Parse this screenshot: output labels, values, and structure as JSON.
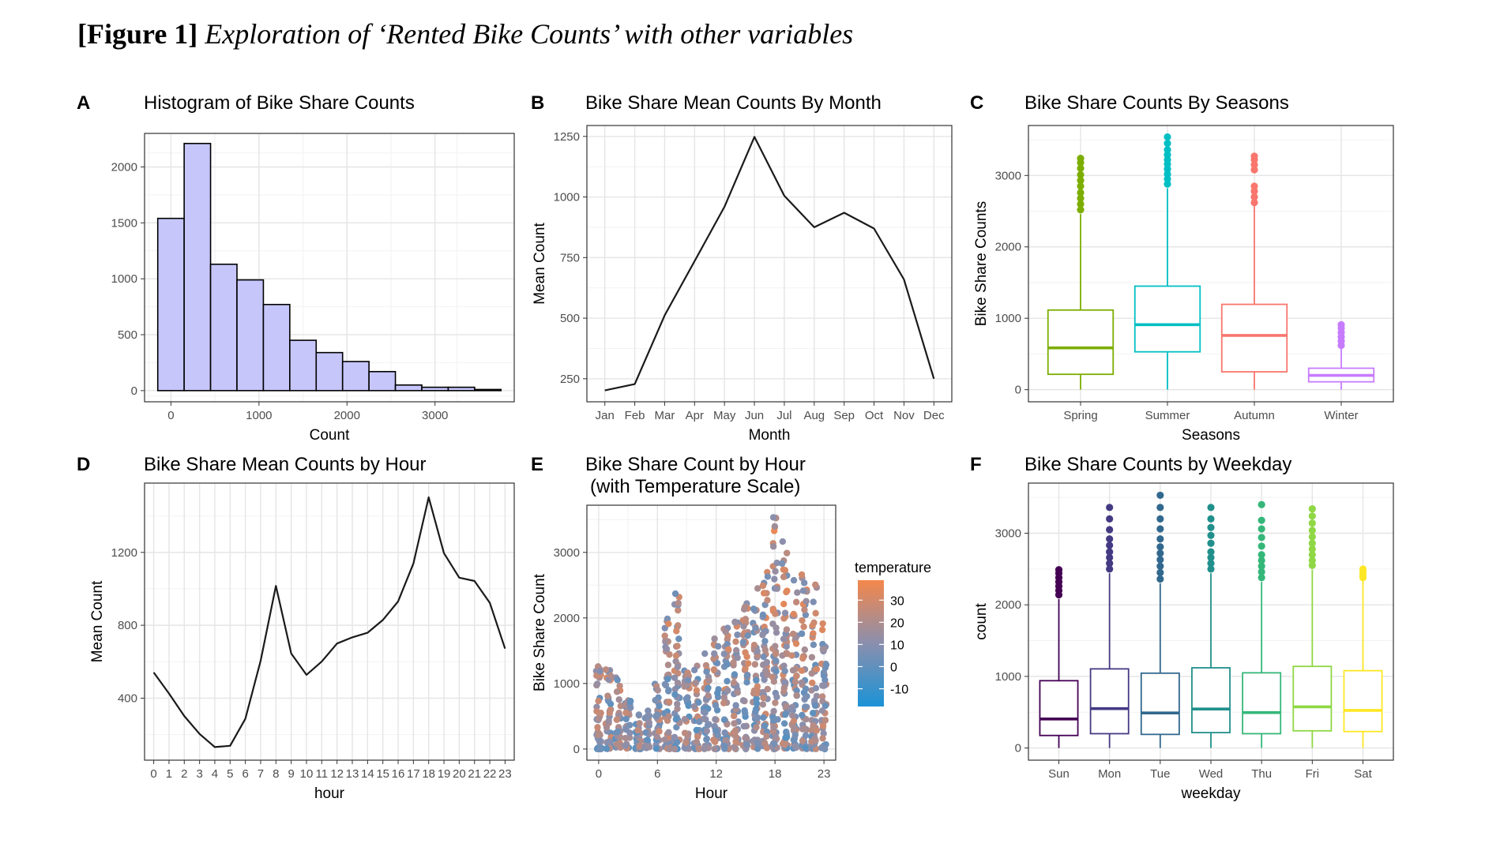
{
  "figure": {
    "label": "[Figure 1]",
    "title": "Exploration of ‘Rented Bike Counts’ with other variables"
  },
  "colors": {
    "histogram_fill": "#c6c6fb",
    "line": "#1a1a1a",
    "season": {
      "Spring": "#7cae00",
      "Summer": "#00bfc4",
      "Autumn": "#f8766d",
      "Winter": "#c77cff"
    },
    "weekday": {
      "Sun": "#440154",
      "Mon": "#443a83",
      "Tue": "#31688e",
      "Wed": "#21908c",
      "Thu": "#35b779",
      "Fri": "#8fd744",
      "Sat": "#fde725"
    },
    "temperature_low": "#1b93d6",
    "temperature_mid": "#8a8fae",
    "temperature_high": "#f4874b"
  },
  "chart_data": [
    {
      "panel": "A",
      "type": "bar",
      "subtype": "histogram",
      "title": "Histogram of Bike Share Counts",
      "xlabel": "Count",
      "ylabel": "",
      "bin_width": 300,
      "bin_starts": [
        -150,
        150,
        450,
        750,
        1050,
        1350,
        1650,
        1950,
        2250,
        2550,
        2850,
        3150,
        3450
      ],
      "values": [
        1540,
        2210,
        1130,
        990,
        770,
        450,
        340,
        260,
        170,
        50,
        30,
        30,
        10
      ],
      "xlim": [
        -300,
        3900
      ],
      "ylim": [
        -100,
        2300
      ],
      "xticks": [
        0,
        1000,
        2000,
        3000
      ],
      "yticks": [
        0,
        500,
        1000,
        1500,
        2000
      ],
      "xtick_labels": [
        "0",
        "1000",
        "2000",
        "3000"
      ],
      "ytick_labels": [
        "0",
        "500",
        "1000",
        "1500",
        "2000"
      ],
      "grid": true
    },
    {
      "panel": "B",
      "type": "line",
      "title": "Bike Share Mean Counts By Month",
      "xlabel": "Month",
      "ylabel": "Mean Count",
      "categories": [
        "Jan",
        "Feb",
        "Mar",
        "Apr",
        "May",
        "Jun",
        "Jul",
        "Aug",
        "Sep",
        "Oct",
        "Nov",
        "Dec"
      ],
      "values": [
        202,
        228,
        512,
        735,
        960,
        1248,
        1005,
        875,
        935,
        870,
        660,
        250
      ],
      "ylim": [
        155,
        1295
      ],
      "yticks": [
        250,
        500,
        750,
        1000,
        1250
      ],
      "ytick_labels": [
        "250",
        "500",
        "750",
        "1000",
        "1250"
      ],
      "grid": true
    },
    {
      "panel": "C",
      "type": "box",
      "title": "Bike Share Counts By Seasons",
      "xlabel": "Seasons",
      "ylabel": "Bike Share Counts",
      "categories": [
        "Spring",
        "Summer",
        "Autumn",
        "Winter"
      ],
      "boxes": [
        {
          "category": "Spring",
          "whisker_low": 0,
          "q1": 215,
          "median": 585,
          "q3": 1115,
          "whisker_high": 2460,
          "outliers": [
            2520,
            2600,
            2680,
            2760,
            2850,
            2930,
            3010,
            3100,
            3180,
            3240
          ]
        },
        {
          "category": "Summer",
          "whisker_low": 0,
          "q1": 530,
          "median": 910,
          "q3": 1450,
          "whisker_high": 2820,
          "outliers": [
            2880,
            2950,
            3020,
            3090,
            3160,
            3220,
            3290,
            3360,
            3450,
            3540
          ]
        },
        {
          "category": "Autumn",
          "whisker_low": 0,
          "q1": 250,
          "median": 760,
          "q3": 1195,
          "whisker_high": 2580,
          "outliers": [
            2620,
            2700,
            2780,
            2850,
            3080,
            3150,
            3220,
            3270
          ]
        },
        {
          "category": "Winter",
          "whisker_low": 0,
          "q1": 110,
          "median": 200,
          "q3": 300,
          "whisker_high": 580,
          "outliers": [
            620,
            680,
            740,
            800,
            860,
            910
          ]
        }
      ],
      "ylim": [
        -170,
        3700
      ],
      "yticks": [
        0,
        1000,
        2000,
        3000
      ],
      "ytick_labels": [
        "0",
        "1000",
        "2000",
        "3000"
      ],
      "grid": true
    },
    {
      "panel": "D",
      "type": "line",
      "title": "Bike Share Mean Counts by Hour",
      "xlabel": "hour",
      "ylabel": "Mean Count",
      "categories": [
        "0",
        "1",
        "2",
        "3",
        "4",
        "5",
        "6",
        "7",
        "8",
        "9",
        "10",
        "11",
        "12",
        "13",
        "14",
        "15",
        "16",
        "17",
        "18",
        "19",
        "20",
        "21",
        "22",
        "23"
      ],
      "values": [
        541,
        426,
        302,
        204,
        132,
        139,
        287,
        606,
        1016,
        645,
        528,
        601,
        700,
        734,
        759,
        829,
        931,
        1139,
        1502,
        1196,
        1061,
        1043,
        923,
        672
      ],
      "ylim": [
        60,
        1580
      ],
      "yticks": [
        400,
        800,
        1200
      ],
      "ytick_labels": [
        "400",
        "800",
        "1200"
      ],
      "grid": true
    },
    {
      "panel": "E",
      "type": "scatter",
      "title": "Bike Share Count by Hour",
      "subtitle": "(with Temperature Scale)",
      "xlabel": "Hour",
      "ylabel": "Bike Share Count",
      "color_by": "temperature",
      "legend_title": "temperature",
      "legend_labels": [
        "30",
        "20",
        "10",
        "0",
        "-10"
      ],
      "legend_values": [
        30,
        20,
        10,
        0,
        -10
      ],
      "temperature_range": [
        -18,
        39
      ],
      "hourly_count_range": [
        {
          "hour": 0,
          "min": 0,
          "max": 1400
        },
        {
          "hour": 1,
          "min": 0,
          "max": 1300
        },
        {
          "hour": 2,
          "min": 0,
          "max": 1100
        },
        {
          "hour": 3,
          "min": 0,
          "max": 800
        },
        {
          "hour": 4,
          "min": 0,
          "max": 550
        },
        {
          "hour": 5,
          "min": 0,
          "max": 650
        },
        {
          "hour": 6,
          "min": 0,
          "max": 1000
        },
        {
          "hour": 7,
          "min": 0,
          "max": 2000
        },
        {
          "hour": 8,
          "min": 0,
          "max": 2450
        },
        {
          "hour": 9,
          "min": 0,
          "max": 1300
        },
        {
          "hour": 10,
          "min": 0,
          "max": 1300
        },
        {
          "hour": 11,
          "min": 0,
          "max": 1500
        },
        {
          "hour": 12,
          "min": 0,
          "max": 1700
        },
        {
          "hour": 13,
          "min": 0,
          "max": 1900
        },
        {
          "hour": 14,
          "min": 0,
          "max": 2000
        },
        {
          "hour": 15,
          "min": 0,
          "max": 2300
        },
        {
          "hour": 16,
          "min": 0,
          "max": 2500
        },
        {
          "hour": 17,
          "min": 0,
          "max": 2900
        },
        {
          "hour": 18,
          "min": 0,
          "max": 3556
        },
        {
          "hour": 19,
          "min": 0,
          "max": 3200
        },
        {
          "hour": 20,
          "min": 0,
          "max": 2700
        },
        {
          "hour": 21,
          "min": 0,
          "max": 2700
        },
        {
          "hour": 22,
          "min": 0,
          "max": 2600
        },
        {
          "hour": 23,
          "min": 0,
          "max": 2000
        }
      ],
      "xlim": [
        -1.2,
        24.2
      ],
      "ylim": [
        -170,
        3720
      ],
      "xticks": [
        0,
        6,
        12,
        18,
        23
      ],
      "yticks": [
        0,
        1000,
        2000,
        3000
      ],
      "xtick_labels": [
        "0",
        "6",
        "12",
        "18",
        "23"
      ],
      "ytick_labels": [
        "0",
        "1000",
        "2000",
        "3000"
      ],
      "grid": true
    },
    {
      "panel": "F",
      "type": "box",
      "title": "Bike Share Counts by Weekday",
      "xlabel": "weekday",
      "ylabel": "count",
      "categories": [
        "Sun",
        "Mon",
        "Tue",
        "Wed",
        "Thu",
        "Fri",
        "Sat"
      ],
      "boxes": [
        {
          "category": "Sun",
          "whisker_low": 0,
          "q1": 175,
          "median": 405,
          "q3": 940,
          "whisker_high": 2080,
          "outliers": [
            2140,
            2200,
            2260,
            2320,
            2380,
            2440,
            2490
          ]
        },
        {
          "category": "Mon",
          "whisker_low": 0,
          "q1": 200,
          "median": 550,
          "q3": 1105,
          "whisker_high": 2440,
          "outliers": [
            2500,
            2580,
            2660,
            2740,
            2830,
            2920,
            3050,
            3200,
            3360
          ]
        },
        {
          "category": "Tue",
          "whisker_low": 0,
          "q1": 190,
          "median": 490,
          "q3": 1045,
          "whisker_high": 2300,
          "outliers": [
            2360,
            2450,
            2540,
            2630,
            2720,
            2810,
            2920,
            3060,
            3200,
            3360,
            3530
          ]
        },
        {
          "category": "Wed",
          "whisker_low": 0,
          "q1": 215,
          "median": 545,
          "q3": 1120,
          "whisker_high": 2440,
          "outliers": [
            2500,
            2580,
            2660,
            2740,
            2860,
            2970,
            3080,
            3200,
            3360
          ]
        },
        {
          "category": "Thu",
          "whisker_low": 0,
          "q1": 200,
          "median": 495,
          "q3": 1050,
          "whisker_high": 2320,
          "outliers": [
            2380,
            2460,
            2540,
            2620,
            2700,
            2820,
            2940,
            3060,
            3180,
            3400
          ]
        },
        {
          "category": "Fri",
          "whisker_low": 0,
          "q1": 240,
          "median": 575,
          "q3": 1140,
          "whisker_high": 2490,
          "outliers": [
            2550,
            2620,
            2700,
            2780,
            2860,
            2950,
            3040,
            3140,
            3240,
            3340
          ]
        },
        {
          "category": "Sat",
          "whisker_low": 0,
          "q1": 230,
          "median": 525,
          "q3": 1080,
          "whisker_high": 2340,
          "outliers": [
            2380,
            2420,
            2460,
            2500
          ]
        }
      ],
      "ylim": [
        -170,
        3700
      ],
      "yticks": [
        0,
        1000,
        2000,
        3000
      ],
      "ytick_labels": [
        "0",
        "1000",
        "2000",
        "3000"
      ],
      "grid": true
    }
  ]
}
